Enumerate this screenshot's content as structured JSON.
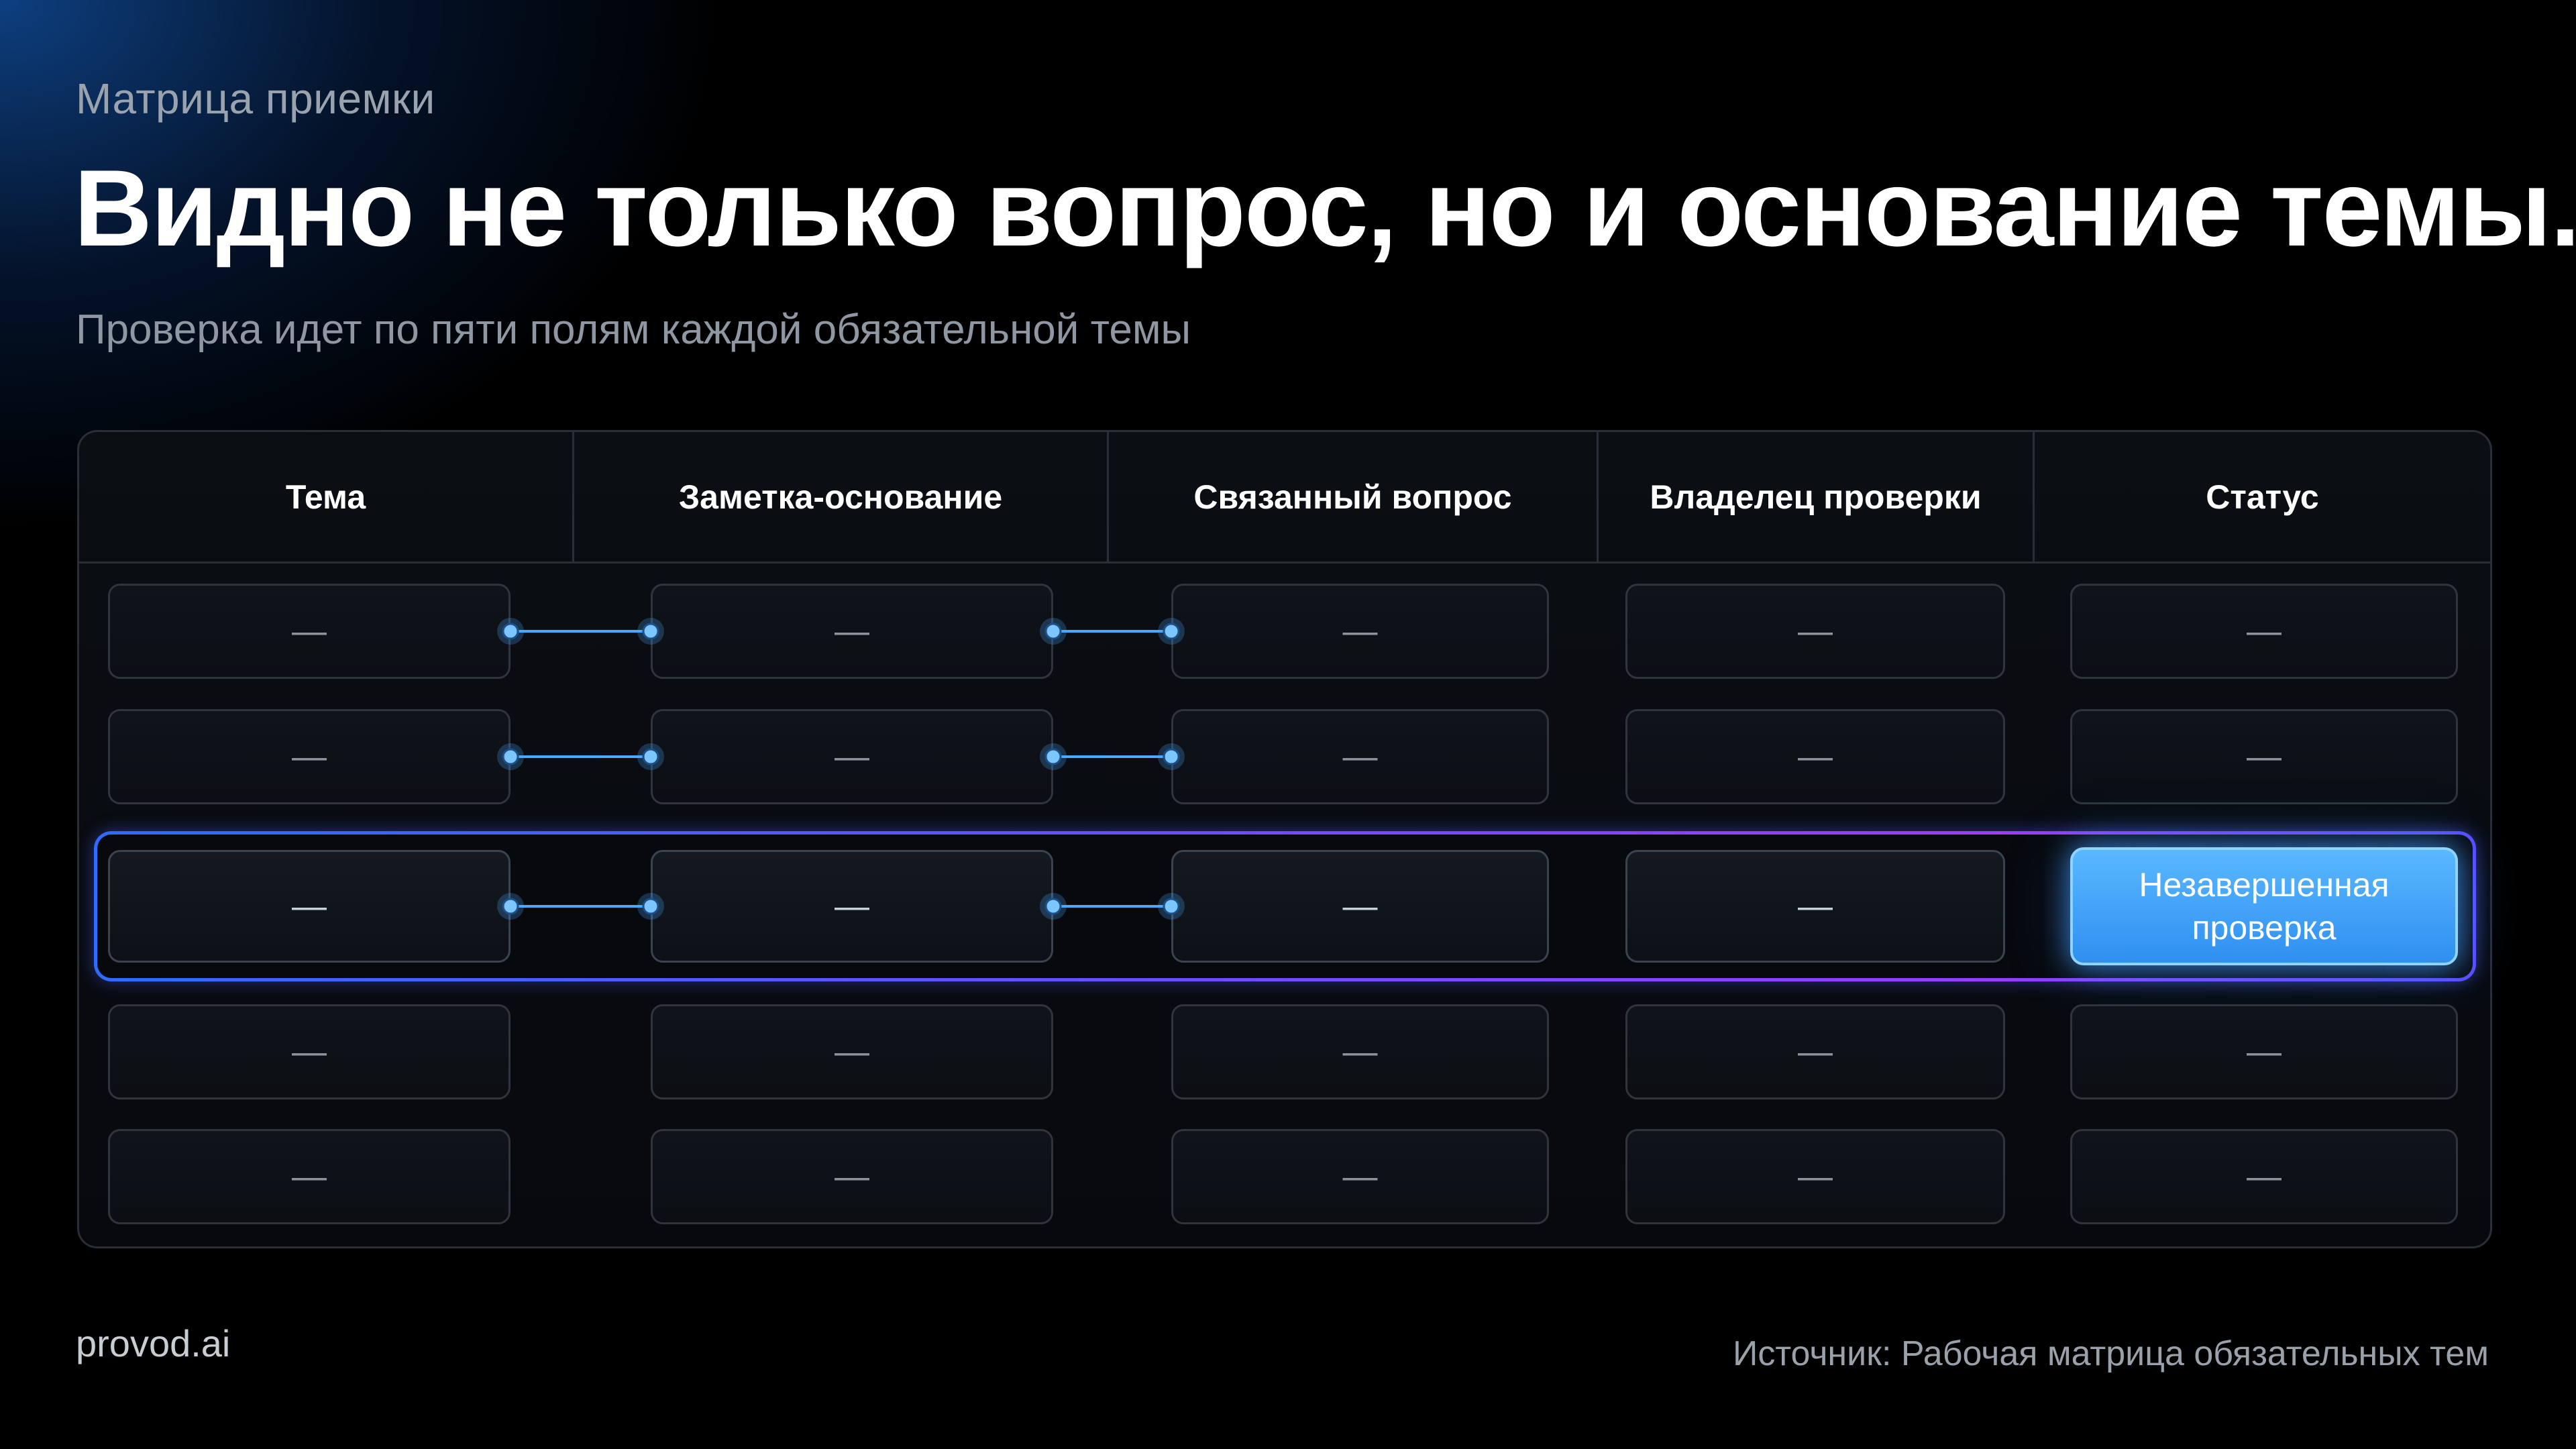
{
  "eyebrow": "Матрица приемки",
  "title": "Видно не только вопрос, но и основание темы.",
  "subtitle": "Проверка идет по пяти полям каждой обязательной темы",
  "table": {
    "columns": [
      "Тема",
      "Заметка-основание",
      "Связанный вопрос",
      "Владелец проверки",
      "Статус"
    ],
    "placeholder": "—",
    "highlighted_row_index": 2,
    "highlighted_status": "Незавершенная проверка"
  },
  "footer": {
    "brand": "provod.ai",
    "source": "Источник: Рабочая матрица обязательных тем"
  },
  "colors": {
    "background": "#000000",
    "accent_blue": "#3a9cff",
    "row_border_start": "#2f6bff",
    "row_border_end": "#9b3cff",
    "connector": "#4aa8ff"
  }
}
